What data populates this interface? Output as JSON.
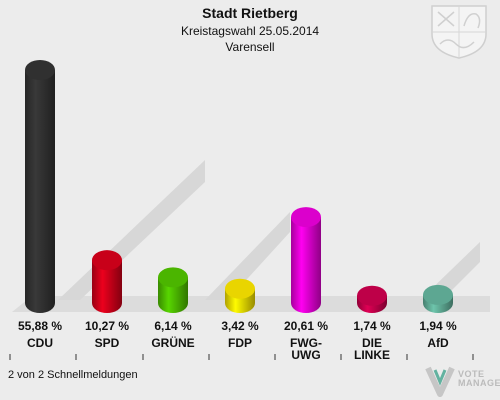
{
  "header": {
    "title": "Stadt Rietberg",
    "subtitle": "Kreistagswahl 25.05.2014",
    "district": "Varensell"
  },
  "footer": {
    "status": "2 von 2 Schnellmeldungen"
  },
  "brand": {
    "line1": "VOTE",
    "line2": "MANAGER",
    "logo": "vote-manager-logo-icon"
  },
  "crest": {
    "icon": "nrw-coat-of-arms-icon"
  },
  "chart_data": {
    "type": "bar",
    "categories": [
      "CDU",
      "SPD",
      "GRÜNE",
      "FDP",
      "FWG-UWG",
      "DIE LINKE",
      "AfD"
    ],
    "category_lines": [
      [
        "CDU"
      ],
      [
        "SPD"
      ],
      [
        "GRÜNE"
      ],
      [
        "FDP"
      ],
      [
        "FWG-",
        "UWG"
      ],
      [
        "DIE",
        "LINKE"
      ],
      [
        "AfD"
      ]
    ],
    "values": [
      55.88,
      10.27,
      6.14,
      3.42,
      20.61,
      1.74,
      1.94
    ],
    "value_labels": [
      "55,88 %",
      "10,27 %",
      "6,14 %",
      "3,42 %",
      "20,61 %",
      "1,74 %",
      "1,94 %"
    ],
    "colors": [
      "#333333",
      "#d3001a",
      "#4fbf00",
      "#f5e000",
      "#e600d7",
      "#c8004c",
      "#62b09a"
    ],
    "ylim": [
      0,
      60
    ],
    "grid": false,
    "legend": "none"
  }
}
